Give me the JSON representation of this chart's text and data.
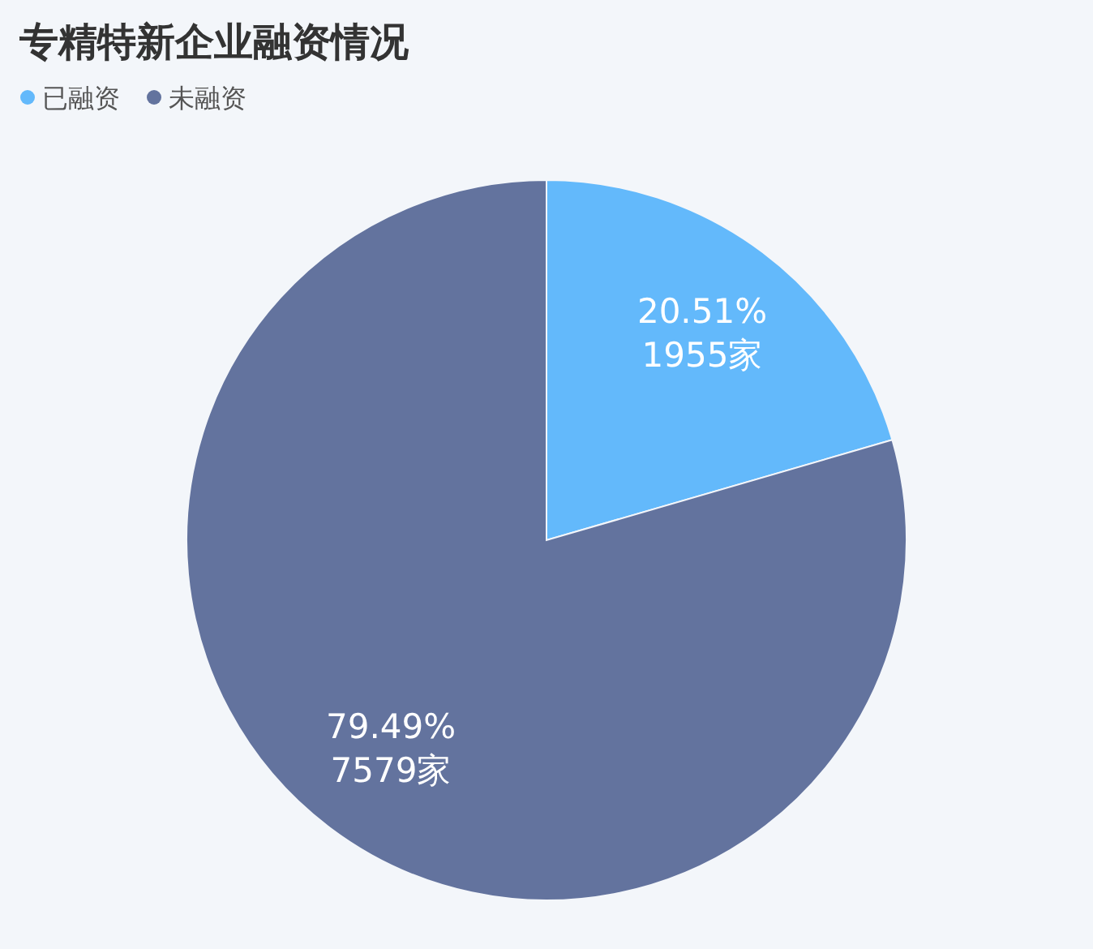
{
  "chart_data": {
    "type": "pie",
    "title": "专精特新企业融资情况",
    "categories": [
      "已融资",
      "未融资"
    ],
    "values": [
      1955,
      7579
    ],
    "colors": [
      "#63b9fb",
      "#63739e"
    ],
    "value_labels": [
      "20.51%\n1955家",
      "79.49%\n7579家"
    ],
    "legend": "top left"
  }
}
